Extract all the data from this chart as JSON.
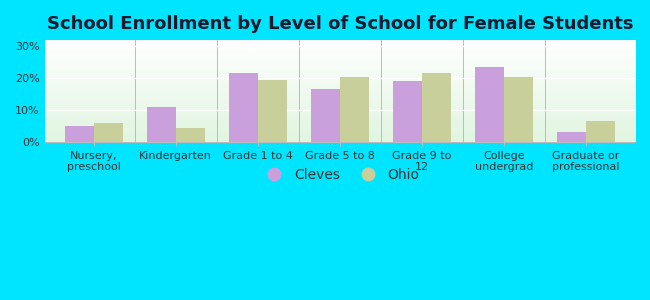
{
  "title": "School Enrollment by Level of School for Female Students",
  "categories": [
    "Nursery,\npreschool",
    "Kindergarten",
    "Grade 1 to 4",
    "Grade 5 to 8",
    "Grade 9 to\n12",
    "College\nundergrad",
    "Graduate or\nprofessional"
  ],
  "cleves": [
    5.0,
    11.0,
    21.5,
    16.5,
    19.0,
    23.5,
    3.0
  ],
  "ohio": [
    6.0,
    4.5,
    19.5,
    20.5,
    21.5,
    20.5,
    6.5
  ],
  "cleves_color": "#c9a0dc",
  "ohio_color": "#c8cf9a",
  "background_outer": "#00e5ff",
  "ylabel_ticks": [
    "0%",
    "10%",
    "20%",
    "30%"
  ],
  "yticks": [
    0,
    10,
    20,
    30
  ],
  "ylim": [
    0,
    32
  ],
  "bar_width": 0.35,
  "legend_labels": [
    "Cleves",
    "Ohio"
  ],
  "title_fontsize": 13,
  "tick_fontsize": 8,
  "legend_fontsize": 10
}
